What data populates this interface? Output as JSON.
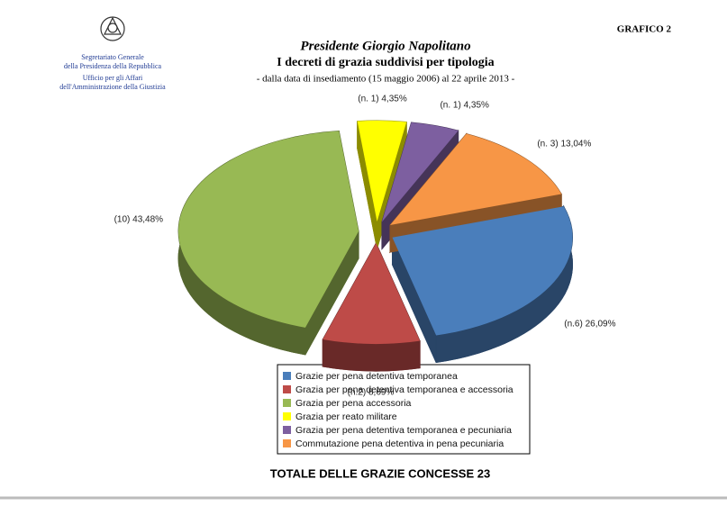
{
  "header": {
    "office_lines": [
      "Segretariato Generale",
      "della Presidenza della Repubblica",
      "Ufficio per gli Affari",
      "dell'Amministrazione della Giustizia"
    ],
    "tag": "GRAFICO  2"
  },
  "chart_data": {
    "type": "pie",
    "title": "Presidente Giorgio Napolitano",
    "subtitle": "I decreti di grazia suddivisi per tipologia",
    "note": "- dalla data di insediamento (15 maggio 2006) al  22 aprile 2013 -",
    "footer": "TOTALE DELLE GRAZIE CONCESSE 23",
    "categories": [
      "Grazie per pena detentiva temporanea",
      "Grazia per pena detentiva temporanea e accessoria",
      "Grazia per pena accessoria",
      "Grazia per reato militare",
      "Grazia per pena detentiva temporanea e pecuniaria",
      "Commutazione pena detentiva in pena pecuniaria"
    ],
    "values": [
      26.09,
      8.69,
      43.48,
      4.35,
      4.35,
      13.04
    ],
    "value_labels": [
      "(n.6) 26,09%",
      "(n.2)  8,69%",
      "(10) 43,48%",
      "(n. 1) 4,35%",
      "(n. 1) 4,35%",
      "(n. 3) 13,04%"
    ],
    "colors": [
      "#4a7ebb",
      "#be4b48",
      "#98b954",
      "#ffff00",
      "#7d5fa0",
      "#f79646"
    ],
    "legend": "bottom"
  }
}
